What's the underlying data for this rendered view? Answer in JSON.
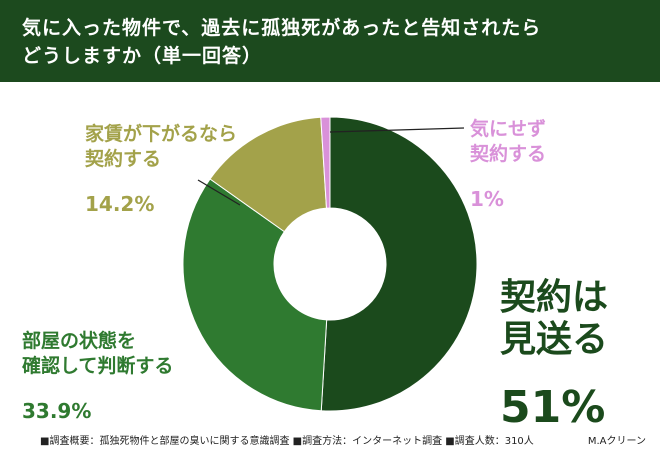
{
  "chart_data": {
    "type": "pie",
    "title": "気に入った物件で、過去に孤独死があったと告知されたら\nどうしますか（単一回答）",
    "categories": [
      "契約は\n見送る",
      "部屋の状態を\n確認して判断する",
      "家賃が下がるなら\n契約する",
      "気にせず\n契約する"
    ],
    "values": [
      51,
      33.9,
      14.2,
      1
    ],
    "value_labels": [
      "51%",
      "33.9%",
      "14.2%",
      "1%"
    ],
    "colors": [
      "#1b4a1c",
      "#2f7a30",
      "#a3a24a",
      "#d991d9"
    ],
    "footnote": "■調査概要：孤独死物件と部屋の臭いに関する意識調査 ■調査方法：インターネット調査 ■調査人数：310人",
    "source": "M.Aクリーン"
  }
}
